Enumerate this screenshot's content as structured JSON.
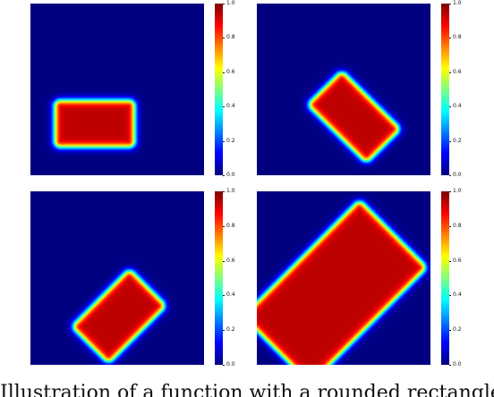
{
  "figure": {
    "panels": [
      {
        "id": "top-left",
        "shape": "rounded-rectangle",
        "center": [
          0.37,
          0.7
        ],
        "size": [
          0.46,
          0.27
        ],
        "rotation_deg": 0
      },
      {
        "id": "top-right",
        "shape": "rounded-rectangle",
        "center": [
          0.56,
          0.66
        ],
        "size": [
          0.48,
          0.28
        ],
        "rotation_deg": 45
      },
      {
        "id": "bottom-left",
        "shape": "rounded-rectangle",
        "center": [
          0.51,
          0.72
        ],
        "size": [
          0.47,
          0.3
        ],
        "rotation_deg": -45
      },
      {
        "id": "bottom-right",
        "shape": "rounded-rectangle",
        "center": [
          0.45,
          0.58
        ],
        "size": [
          0.95,
          0.55
        ],
        "rotation_deg": -45
      }
    ],
    "colormap": "jet",
    "colorbar_ticks": [
      "0.0",
      "0.2",
      "0.4",
      "0.6",
      "0.8",
      "1.0"
    ]
  },
  "caption": {
    "text": "Illustration of a function with a rounded rectangle"
  }
}
